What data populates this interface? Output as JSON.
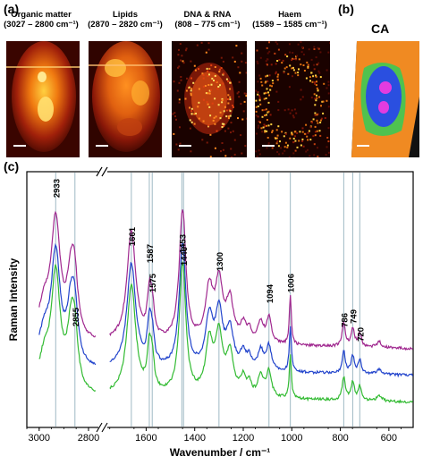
{
  "panel_a": {
    "label": "(a)",
    "images": [
      {
        "title": "Organic matter",
        "range": "(3027 – 2800 cm⁻¹)"
      },
      {
        "title": "Lipids",
        "range": "(2870 – 2820 cm⁻¹)"
      },
      {
        "title": "DNA & RNA",
        "range": "(808 – 775 cm⁻¹)"
      },
      {
        "title": "Haem",
        "range": "(1589 – 1585 cm⁻¹)"
      }
    ]
  },
  "panel_b": {
    "label": "(b)",
    "title": "CA",
    "colors": {
      "background": "#ffffff",
      "frame": "#111111",
      "cytoplasm_outer": "#f08a22",
      "cytoplasm_inner": "#4fc24f",
      "nucleus": "#2a4fe0",
      "nucleoli": "#e23ce0"
    }
  },
  "panel_c": {
    "label": "(c)",
    "chart_data": {
      "type": "line",
      "xlabel": "Wavenumber / cm⁻¹",
      "ylabel": "Raman Intensity",
      "x_reversed": true,
      "x_break": [
        2760,
        1760
      ],
      "xlim": [
        3050,
        500
      ],
      "x_ticks": [
        3000,
        2800,
        1600,
        1400,
        1200,
        1000,
        800,
        600
      ],
      "y_ticks_shown": false,
      "peak_labels": [
        2933,
        2855,
        1661,
        1587,
        1575,
        1453,
        1446,
        1300,
        1094,
        1006,
        786,
        749,
        720
      ],
      "series_colors": [
        "#a0288f",
        "#2244cc",
        "#33bb33"
      ],
      "series_note_offsets": [
        2.2,
        1.1,
        0.0
      ],
      "series": [
        {
          "values_key": "purple"
        },
        {
          "values_key": "blue"
        },
        {
          "values_key": "green"
        }
      ]
    }
  }
}
